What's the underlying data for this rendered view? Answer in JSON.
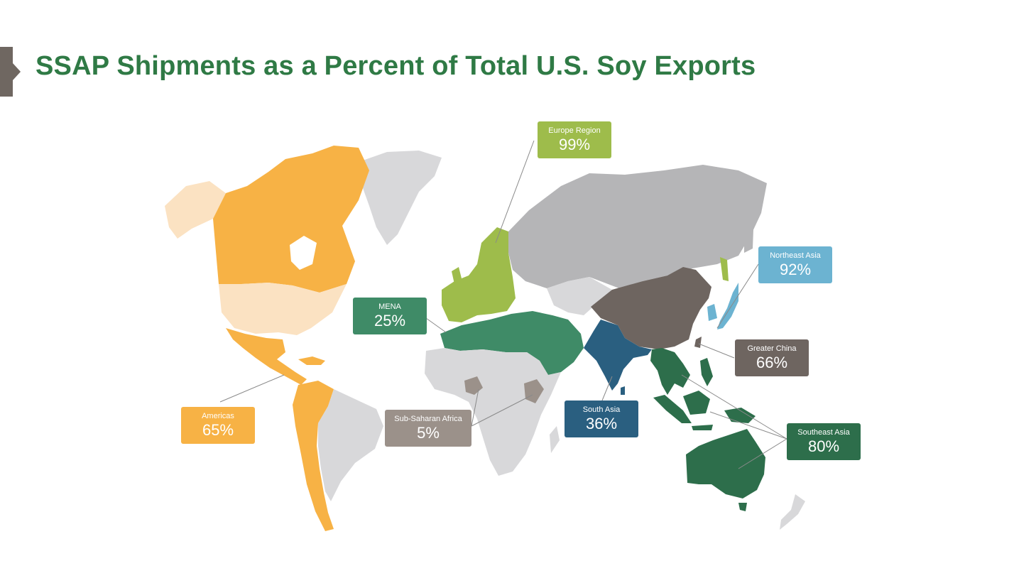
{
  "title": "SSAP Shipments as a Percent of Total U.S. Soy Exports",
  "colors": {
    "title": "#2f7a45",
    "accent": "#6f6761",
    "americas": "#f7b245",
    "americas_light": "#fbe2c2",
    "europe": "#9ebc4b",
    "mena": "#3f8b67",
    "sub_saharan_africa": "#9b918a",
    "south_asia": "#2a5f80",
    "greater_china": "#6e6560",
    "northeast_asia": "#6cb3d1",
    "southeast_asia": "#2d6e4b",
    "non_ssap_land": "#b5b5b7",
    "other_land": "#d8d8da"
  },
  "regions": [
    {
      "id": "americas",
      "name": "Americas",
      "value": "65%"
    },
    {
      "id": "europe",
      "name": "Europe Region",
      "value": "99%"
    },
    {
      "id": "mena",
      "name": "MENA",
      "value": "25%"
    },
    {
      "id": "sub-saharan-africa",
      "name": "Sub-Saharan Africa",
      "value": "5%"
    },
    {
      "id": "south-asia",
      "name": "South Asia",
      "value": "36%"
    },
    {
      "id": "greater-china",
      "name": "Greater China",
      "value": "66%"
    },
    {
      "id": "northeast-asia",
      "name": "Northeast Asia",
      "value": "92%"
    },
    {
      "id": "southeast-asia",
      "name": "Southeast Asia",
      "value": "80%"
    }
  ]
}
